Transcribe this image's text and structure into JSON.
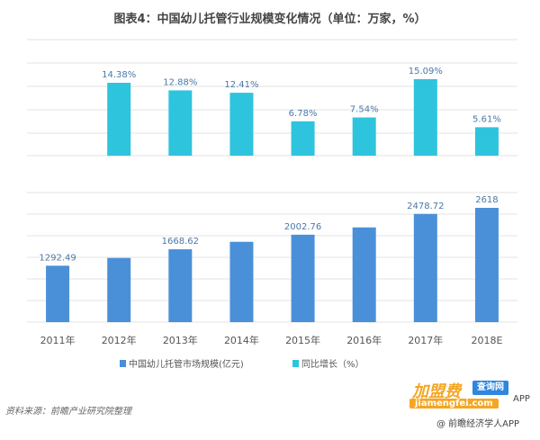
{
  "title": "图表4：中国幼儿托管行业规模变化情况（单位：万家，%）",
  "source": "资料来源：前瞻产业研究院整理",
  "watermark": {
    "brand": "加盟费",
    "badge": "查询网",
    "url": "jiamengfei.com",
    "app1": "APP",
    "app2": "@ 前瞻经济学人APP"
  },
  "colors": {
    "top_bar": "#2ec4dd",
    "bottom_bar": "#4a90d9",
    "grid": "#e3e3e3",
    "label": "#4a78a8",
    "axis_text": "#555555"
  },
  "chart_data": {
    "type": "bar",
    "categories": [
      "2011年",
      "2012年",
      "2013年",
      "2014年",
      "2015年",
      "2016年",
      "2017年",
      "2018E"
    ],
    "series": [
      {
        "name": "中国幼儿托管市场规模(亿元)",
        "values": [
          1292.49,
          1470,
          1668.62,
          1840,
          2002.76,
          2170,
          2478.72,
          2618
        ],
        "labels": [
          "1292.49",
          "",
          "1668.62",
          "",
          "2002.76",
          "",
          "2478.72",
          "2618"
        ]
      },
      {
        "name": "同比增长（%）",
        "values": [
          null,
          14.38,
          12.88,
          12.41,
          6.78,
          7.54,
          15.09,
          5.61
        ],
        "labels": [
          "",
          "14.38%",
          "12.88%",
          "12.41%",
          "6.78%",
          "7.54%",
          "15.09%",
          "5.61%"
        ]
      }
    ],
    "legend": [
      "中国幼儿托管市场规模(亿元)",
      "同比增长（%）"
    ],
    "legend_position": "bottom",
    "grid": true
  }
}
